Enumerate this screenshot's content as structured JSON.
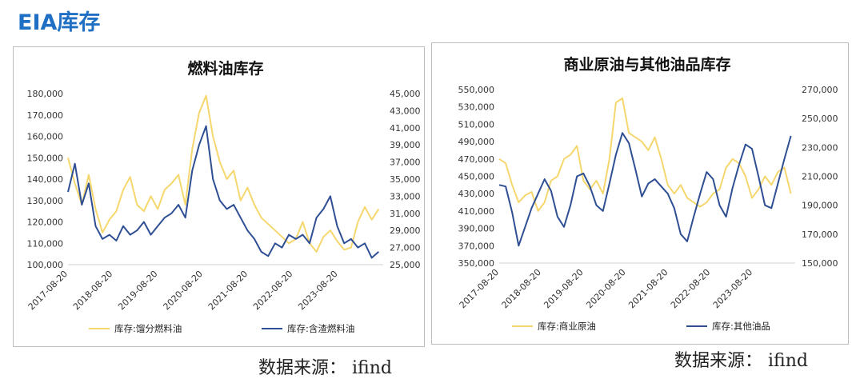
{
  "page": {
    "title": "EIA库存"
  },
  "sources": {
    "left": "数据来源： ifind",
    "right": "数据来源： ifind"
  },
  "colors": {
    "yellow": "#f5d76e",
    "blue": "#2f4f94",
    "title_blue": "#1f6fc4"
  },
  "chart_data": [
    {
      "type": "line",
      "title": "燃料油库存",
      "x_ticks": [
        "2017-08-20",
        "2018-08-20",
        "2019-08-20",
        "2020-08-20",
        "2021-08-20",
        "2022-08-20",
        "2023-08-20"
      ],
      "x_range": [
        "2017-08-20",
        "2024-08-20"
      ],
      "y_left": {
        "min": 100000,
        "max": 180000,
        "step": 10000,
        "ticks": [
          "100,000",
          "110,000",
          "120,000",
          "130,000",
          "140,000",
          "150,000",
          "160,000",
          "170,000",
          "180,000"
        ]
      },
      "y_right": {
        "min": 25000,
        "max": 45000,
        "step": 2000,
        "ticks": [
          "25,000",
          "27,000",
          "29,000",
          "31,000",
          "33,000",
          "35,000",
          "37,000",
          "39,000",
          "41,000",
          "43,000",
          "45,000"
        ]
      },
      "legend_position": "bottom",
      "series": [
        {
          "name": "库存:馏分燃料油",
          "axis": "left",
          "color": "#f5d76e",
          "x": [
            "2017-08-20",
            "2017-10-15",
            "2017-12-10",
            "2018-02-04",
            "2018-04-01",
            "2018-05-27",
            "2018-07-22",
            "2018-09-16",
            "2018-11-11",
            "2019-01-06",
            "2019-03-03",
            "2019-04-28",
            "2019-06-23",
            "2019-08-18",
            "2019-10-13",
            "2019-12-08",
            "2020-02-02",
            "2020-03-29",
            "2020-05-24",
            "2020-07-19",
            "2020-09-13",
            "2020-11-08",
            "2021-01-03",
            "2021-02-28",
            "2021-04-25",
            "2021-06-20",
            "2021-08-15",
            "2021-10-10",
            "2021-12-05",
            "2022-01-30",
            "2022-03-27",
            "2022-05-22",
            "2022-07-17",
            "2022-09-11",
            "2022-11-06",
            "2023-01-01",
            "2023-02-26",
            "2023-04-23",
            "2023-06-18",
            "2023-08-13",
            "2023-10-08",
            "2023-12-03",
            "2024-01-28",
            "2024-03-24",
            "2024-05-19",
            "2024-07-14"
          ],
          "values": [
            150000,
            138000,
            128000,
            142000,
            126000,
            115000,
            121000,
            125000,
            135000,
            141000,
            128000,
            125000,
            132000,
            126000,
            135000,
            138000,
            142000,
            128000,
            154000,
            171000,
            179000,
            160000,
            148000,
            140000,
            144000,
            130000,
            136000,
            128000,
            122000,
            119000,
            116000,
            113000,
            110000,
            112000,
            120000,
            110000,
            106000,
            113000,
            116000,
            111000,
            107000,
            108000,
            120000,
            127000,
            121000,
            126000
          ]
        },
        {
          "name": "库存:含渣燃料油",
          "axis": "right",
          "color": "#2f4f94",
          "x": [
            "2017-08-20",
            "2017-10-15",
            "2017-12-10",
            "2018-02-04",
            "2018-04-01",
            "2018-05-27",
            "2018-07-22",
            "2018-09-16",
            "2018-11-11",
            "2019-01-06",
            "2019-03-03",
            "2019-04-28",
            "2019-06-23",
            "2019-08-18",
            "2019-10-13",
            "2019-12-08",
            "2020-02-02",
            "2020-03-29",
            "2020-05-24",
            "2020-07-19",
            "2020-09-13",
            "2020-11-08",
            "2021-01-03",
            "2021-02-28",
            "2021-04-25",
            "2021-06-20",
            "2021-08-15",
            "2021-10-10",
            "2021-12-05",
            "2022-01-30",
            "2022-03-27",
            "2022-05-22",
            "2022-07-17",
            "2022-09-11",
            "2022-11-06",
            "2023-01-01",
            "2023-02-26",
            "2023-04-23",
            "2023-06-18",
            "2023-08-13",
            "2023-10-08",
            "2023-12-03",
            "2024-01-28",
            "2024-03-24",
            "2024-05-19",
            "2024-07-14"
          ],
          "values": [
            33500,
            36800,
            32000,
            34500,
            29500,
            28000,
            28500,
            27800,
            29500,
            28500,
            29000,
            30000,
            28500,
            29500,
            30500,
            31000,
            32000,
            30500,
            36000,
            39000,
            41200,
            35000,
            32500,
            31500,
            32000,
            30500,
            29000,
            28000,
            26500,
            26000,
            27500,
            27000,
            28500,
            28000,
            28500,
            27500,
            30500,
            31500,
            33000,
            29500,
            27500,
            28000,
            27000,
            27500,
            25800,
            26500
          ]
        }
      ]
    },
    {
      "type": "line",
      "title": "商业原油与其他油品库存",
      "x_ticks": [
        "2017-08-20",
        "2018-08-20",
        "2019-08-20",
        "2020-08-20",
        "2021-08-20",
        "2022-08-20",
        "2023-08-20"
      ],
      "x_range": [
        "2017-08-20",
        "2024-08-20"
      ],
      "y_left": {
        "min": 350000,
        "max": 550000,
        "step": 20000,
        "ticks": [
          "350,000",
          "370,000",
          "390,000",
          "410,000",
          "430,000",
          "450,000",
          "470,000",
          "490,000",
          "510,000",
          "530,000",
          "550,000"
        ]
      },
      "y_right": {
        "min": 150000,
        "max": 270000,
        "step": 20000,
        "ticks": [
          "150,000",
          "170,000",
          "190,000",
          "210,000",
          "230,000",
          "250,000",
          "270,000"
        ]
      },
      "legend_position": "bottom",
      "series": [
        {
          "name": "库存:商业原油",
          "axis": "left",
          "color": "#f5d76e",
          "x": [
            "2017-08-20",
            "2017-10-15",
            "2017-12-10",
            "2018-02-04",
            "2018-04-01",
            "2018-05-27",
            "2018-07-22",
            "2018-09-16",
            "2018-11-11",
            "2019-01-06",
            "2019-03-03",
            "2019-04-28",
            "2019-06-23",
            "2019-08-18",
            "2019-10-13",
            "2019-12-08",
            "2020-02-02",
            "2020-03-29",
            "2020-05-24",
            "2020-07-19",
            "2020-09-13",
            "2020-11-08",
            "2021-01-03",
            "2021-02-28",
            "2021-04-25",
            "2021-06-20",
            "2021-08-15",
            "2021-10-10",
            "2021-12-05",
            "2022-01-30",
            "2022-03-27",
            "2022-05-22",
            "2022-07-17",
            "2022-09-11",
            "2022-11-06",
            "2023-01-01",
            "2023-02-26",
            "2023-04-23",
            "2023-06-18",
            "2023-08-13",
            "2023-10-08",
            "2023-12-03",
            "2024-01-28",
            "2024-03-24",
            "2024-05-19",
            "2024-07-14"
          ],
          "values": [
            470000,
            465000,
            440000,
            420000,
            428000,
            432000,
            410000,
            420000,
            445000,
            450000,
            470000,
            475000,
            485000,
            445000,
            435000,
            445000,
            430000,
            470000,
            535000,
            540000,
            500000,
            495000,
            490000,
            480000,
            495000,
            470000,
            440000,
            430000,
            440000,
            425000,
            420000,
            415000,
            420000,
            430000,
            435000,
            460000,
            470000,
            465000,
            450000,
            425000,
            435000,
            450000,
            440000,
            455000,
            460000,
            430000
          ]
        },
        {
          "name": "库存:其他油品",
          "axis": "right",
          "color": "#2f4f94",
          "x": [
            "2017-08-20",
            "2017-10-15",
            "2017-12-10",
            "2018-02-04",
            "2018-04-01",
            "2018-05-27",
            "2018-07-22",
            "2018-09-16",
            "2018-11-11",
            "2019-01-06",
            "2019-03-03",
            "2019-04-28",
            "2019-06-23",
            "2019-08-18",
            "2019-10-13",
            "2019-12-08",
            "2020-02-02",
            "2020-03-29",
            "2020-05-24",
            "2020-07-19",
            "2020-09-13",
            "2020-11-08",
            "2021-01-03",
            "2021-02-28",
            "2021-04-25",
            "2021-06-20",
            "2021-08-15",
            "2021-10-10",
            "2021-12-05",
            "2022-01-30",
            "2022-03-27",
            "2022-05-22",
            "2022-07-17",
            "2022-09-11",
            "2022-11-06",
            "2023-01-01",
            "2023-02-26",
            "2023-04-23",
            "2023-06-18",
            "2023-08-13",
            "2023-10-08",
            "2023-12-03",
            "2024-01-28",
            "2024-03-24",
            "2024-05-19",
            "2024-07-14"
          ],
          "values": [
            204000,
            203000,
            185000,
            162000,
            175000,
            188000,
            198000,
            208000,
            200000,
            182000,
            175000,
            190000,
            210000,
            212000,
            203000,
            190000,
            186000,
            205000,
            225000,
            240000,
            233000,
            215000,
            196000,
            205000,
            208000,
            203000,
            198000,
            188000,
            170000,
            165000,
            182000,
            198000,
            213000,
            208000,
            190000,
            182000,
            202000,
            218000,
            232000,
            229000,
            210000,
            190000,
            188000,
            205000,
            222000,
            238000
          ]
        }
      ]
    }
  ]
}
